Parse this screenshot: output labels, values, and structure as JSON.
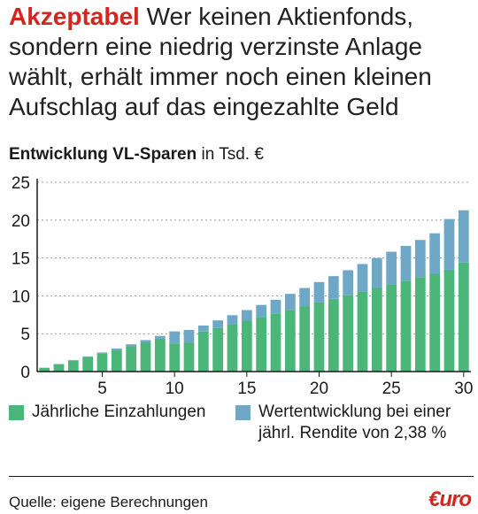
{
  "headline": {
    "kicker": "Akzeptabel",
    "text": "Wer keinen Aktienfonds, sondern eine niedrig verzinste Anlage wählt, erhält immer noch einen kleinen Aufschlag auf das eingezahlte Geld"
  },
  "chart_data": {
    "type": "bar",
    "stacked": true,
    "title": "Entwicklung VL-Sparen",
    "unit": "in Tsd. €",
    "xlabel": "",
    "ylabel": "",
    "ylim": [
      0,
      25
    ],
    "yticks": [
      0,
      5,
      10,
      15,
      20,
      25
    ],
    "xticks": [
      5,
      10,
      15,
      20,
      25,
      30
    ],
    "grid": "horizontal dotted",
    "categories": [
      1,
      2,
      3,
      4,
      5,
      6,
      7,
      8,
      9,
      10,
      11,
      12,
      13,
      14,
      15,
      16,
      17,
      18,
      19,
      20,
      21,
      22,
      23,
      24,
      25,
      26,
      27,
      28,
      29,
      30
    ],
    "series": [
      {
        "name": "Jährliche Einzahlungen",
        "color": "#4cb67a",
        "values": [
          0.5,
          0.98,
          1.46,
          1.94,
          2.42,
          2.9,
          3.38,
          3.86,
          4.34,
          3.72,
          3.8,
          5.28,
          5.76,
          6.24,
          6.72,
          7.2,
          7.68,
          8.16,
          8.64,
          9.12,
          9.6,
          10.08,
          10.56,
          11.04,
          11.52,
          12.0,
          12.48,
          12.96,
          13.44,
          14.4
        ]
      },
      {
        "name": "Wertentwicklung bei einer jährl. Rendite von 2,38 %",
        "color": "#6fa7c7",
        "values": [
          0.0,
          0.02,
          0.04,
          0.06,
          0.1,
          0.15,
          0.22,
          0.3,
          0.37,
          1.58,
          1.7,
          0.8,
          1.0,
          1.2,
          1.4,
          1.6,
          1.8,
          2.1,
          2.4,
          2.7,
          3.0,
          3.3,
          3.64,
          3.96,
          4.3,
          4.6,
          4.9,
          5.3,
          6.7,
          6.9
        ]
      }
    ]
  },
  "legend": {
    "einzahlungen": "Jährliche Einzahlungen",
    "wert_line1": "Wertentwicklung bei einer",
    "wert_line2": "jährl. Rendite von 2,38 %"
  },
  "footer": {
    "source": "Quelle: eigene Berechnungen",
    "brand": "€uro"
  },
  "colors": {
    "einzahlungen": "#4cb67a",
    "wert": "#6fa7c7",
    "accent": "#d6241f",
    "grid": "#9a9a9a"
  }
}
